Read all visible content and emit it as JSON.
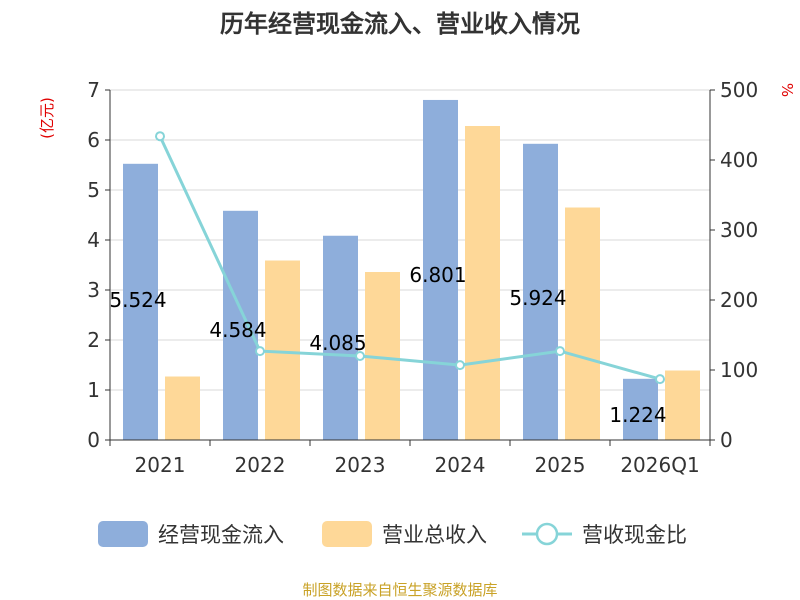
{
  "chart_data": {
    "type": "bar",
    "title": "历年经营现金流入、营业收入情况",
    "categories": [
      "2021",
      "2022",
      "2023",
      "2024",
      "2025",
      "2026Q1"
    ],
    "series": [
      {
        "name": "经营现金流入",
        "kind": "bar",
        "axis": "left",
        "color": "#8eaedb",
        "values": [
          5.524,
          4.584,
          4.085,
          6.801,
          5.924,
          1.224
        ],
        "data_labels": [
          "5.524",
          "4.584",
          "4.085",
          "6.801",
          "5.924",
          "1.224"
        ]
      },
      {
        "name": "营业总收入",
        "kind": "bar",
        "axis": "left",
        "color": "#fed898",
        "values": [
          1.27,
          3.59,
          3.36,
          6.28,
          4.65,
          1.39
        ]
      },
      {
        "name": "营收现金比",
        "kind": "line",
        "axis": "right",
        "color": "#86d4d8",
        "values": [
          434,
          127,
          120,
          107,
          127,
          87
        ]
      }
    ],
    "y_left": {
      "unit_label": "(亿元)",
      "min": 0,
      "max": 7,
      "ticks": [
        "0",
        "1",
        "2",
        "3",
        "4",
        "5",
        "6",
        "7"
      ]
    },
    "y_right": {
      "unit_label": "%",
      "min": 0,
      "max": 500,
      "ticks": [
        "0",
        "100",
        "200",
        "300",
        "400",
        "500"
      ]
    },
    "grid": true,
    "legend_position": "bottom"
  },
  "source_text": "制图数据来自恒生聚源数据库"
}
